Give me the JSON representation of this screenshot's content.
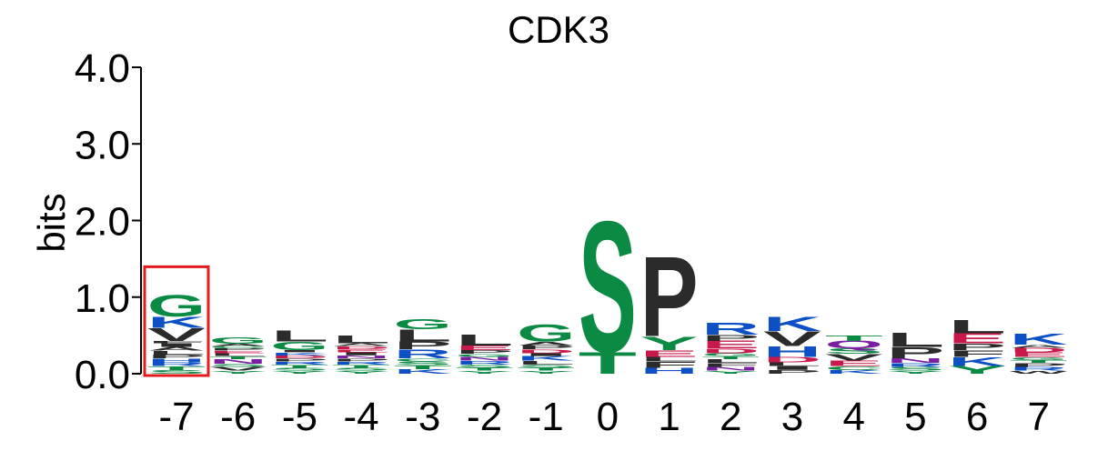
{
  "chart_data": {
    "type": "sequence-logo",
    "title": "CDK3",
    "ylabel": "bits",
    "xlabel": "",
    "ylim": [
      0,
      4
    ],
    "yticks": [
      "0.0",
      "1.0",
      "2.0",
      "3.0",
      "4.0"
    ],
    "positions": [
      "-7",
      "-6",
      "-5",
      "-4",
      "-3",
      "-2",
      "-1",
      "0",
      "1",
      "2",
      "3",
      "4",
      "5",
      "6",
      "7"
    ],
    "highlight_position": "-7",
    "highlight_color": "#e41a1c",
    "residue_colors": {
      "G": "#0b8a44",
      "S": "#0b8a44",
      "T": "#0b8a44",
      "Y": "#0b8a44",
      "C": "#0b8a44",
      "K": "#0d4fc5",
      "R": "#0d4fc5",
      "H": "#0d4fc5",
      "D": "#c8194a",
      "E": "#c8194a",
      "N": "#7a1fa2",
      "Q": "#7a1fa2",
      "P": "#2b2b2b",
      "L": "#2b2b2b",
      "I": "#2b2b2b",
      "V": "#2b2b2b",
      "F": "#2b2b2b",
      "A": "#2b2b2b",
      "M": "#2b2b2b",
      "W": "#2b2b2b"
    },
    "stacks": [
      {
        "position": "-7",
        "letters": [
          {
            "r": "S",
            "h": 0.05
          },
          {
            "r": "T",
            "h": 0.05
          },
          {
            "r": "R",
            "h": 0.05
          },
          {
            "r": "H",
            "h": 0.05
          },
          {
            "r": "P",
            "h": 0.05
          },
          {
            "r": "L",
            "h": 0.05
          },
          {
            "r": "A",
            "h": 0.05
          },
          {
            "r": "I",
            "h": 0.05
          },
          {
            "r": "F",
            "h": 0.03
          },
          {
            "r": "V",
            "h": 0.17
          },
          {
            "r": "K",
            "h": 0.15
          },
          {
            "r": "G",
            "h": 0.29
          }
        ]
      },
      {
        "position": "-6",
        "letters": [
          {
            "r": "Y",
            "h": 0.04
          },
          {
            "r": "V",
            "h": 0.05
          },
          {
            "r": "S",
            "h": 0.04
          },
          {
            "r": "N",
            "h": 0.06
          },
          {
            "r": "T",
            "h": 0.04
          },
          {
            "r": "L",
            "h": 0.04
          },
          {
            "r": "E",
            "h": 0.03
          },
          {
            "r": "P",
            "h": 0.03
          },
          {
            "r": "C",
            "h": 0.03
          },
          {
            "r": "A",
            "h": 0.03
          },
          {
            "r": "G",
            "h": 0.09
          }
        ]
      },
      {
        "position": "-5",
        "letters": [
          {
            "r": "Y",
            "h": 0.04
          },
          {
            "r": "S",
            "h": 0.04
          },
          {
            "r": "T",
            "h": 0.04
          },
          {
            "r": "R",
            "h": 0.04
          },
          {
            "r": "P",
            "h": 0.04
          },
          {
            "r": "D",
            "h": 0.04
          },
          {
            "r": "K",
            "h": 0.04
          },
          {
            "r": "I",
            "h": 0.03
          },
          {
            "r": "G",
            "h": 0.11
          },
          {
            "r": "L",
            "h": 0.15
          }
        ]
      },
      {
        "position": "-4",
        "letters": [
          {
            "r": "Y",
            "h": 0.04
          },
          {
            "r": "S",
            "h": 0.04
          },
          {
            "r": "T",
            "h": 0.04
          },
          {
            "r": "R",
            "h": 0.04
          },
          {
            "r": "P",
            "h": 0.04
          },
          {
            "r": "N",
            "h": 0.04
          },
          {
            "r": "I",
            "h": 0.04
          },
          {
            "r": "E",
            "h": 0.04
          },
          {
            "r": "D",
            "h": 0.04
          },
          {
            "r": "A",
            "h": 0.04
          },
          {
            "r": "L",
            "h": 0.1
          }
        ]
      },
      {
        "position": "-3",
        "letters": [
          {
            "r": "K",
            "h": 0.06
          },
          {
            "r": "T",
            "h": 0.05
          },
          {
            "r": "S",
            "h": 0.05
          },
          {
            "r": "C",
            "h": 0.04
          },
          {
            "r": "R",
            "h": 0.12
          },
          {
            "r": "P",
            "h": 0.1
          },
          {
            "r": "L",
            "h": 0.16
          },
          {
            "r": "G",
            "h": 0.13
          }
        ]
      },
      {
        "position": "-2",
        "letters": [
          {
            "r": "Y",
            "h": 0.04
          },
          {
            "r": "T",
            "h": 0.04
          },
          {
            "r": "S",
            "h": 0.04
          },
          {
            "r": "R",
            "h": 0.05
          },
          {
            "r": "N",
            "h": 0.05
          },
          {
            "r": "G",
            "h": 0.04
          },
          {
            "r": "P",
            "h": 0.05
          },
          {
            "r": "E",
            "h": 0.06
          },
          {
            "r": "L",
            "h": 0.15
          }
        ]
      },
      {
        "position": "-1",
        "letters": [
          {
            "r": "Y",
            "h": 0.04
          },
          {
            "r": "T",
            "h": 0.04
          },
          {
            "r": "S",
            "h": 0.04
          },
          {
            "r": "L",
            "h": 0.05
          },
          {
            "r": "K",
            "h": 0.06
          },
          {
            "r": "I",
            "h": 0.04
          },
          {
            "r": "D",
            "h": 0.05
          },
          {
            "r": "P",
            "h": 0.05
          },
          {
            "r": "A",
            "h": 0.05
          },
          {
            "r": "G",
            "h": 0.23
          }
        ]
      },
      {
        "position": "0",
        "letters": [
          {
            "r": "T",
            "h": 0.29
          },
          {
            "r": "S",
            "h": 1.76
          }
        ]
      },
      {
        "position": "1",
        "letters": [
          {
            "r": "H",
            "h": 0.08
          },
          {
            "r": "F",
            "h": 0.08
          },
          {
            "r": "L",
            "h": 0.06
          },
          {
            "r": "E",
            "h": 0.09
          },
          {
            "r": "Y",
            "h": 0.18
          },
          {
            "r": "P",
            "h": 1.07
          }
        ]
      },
      {
        "position": "2",
        "letters": [
          {
            "r": "Y",
            "h": 0.04
          },
          {
            "r": "N",
            "h": 0.05
          },
          {
            "r": "F",
            "h": 0.05
          },
          {
            "r": "L",
            "h": 0.05
          },
          {
            "r": "T",
            "h": 0.04
          },
          {
            "r": "G",
            "h": 0.04
          },
          {
            "r": "D",
            "h": 0.06
          },
          {
            "r": "E",
            "h": 0.1
          },
          {
            "r": "P",
            "h": 0.08
          },
          {
            "r": "R",
            "h": 0.16
          }
        ]
      },
      {
        "position": "3",
        "letters": [
          {
            "r": "P",
            "h": 0.05
          },
          {
            "r": "I",
            "h": 0.05
          },
          {
            "r": "L",
            "h": 0.05
          },
          {
            "r": "D",
            "h": 0.07
          },
          {
            "r": "H",
            "h": 0.14
          },
          {
            "r": "V",
            "h": 0.2
          },
          {
            "r": "K",
            "h": 0.19
          }
        ]
      },
      {
        "position": "4",
        "letters": [
          {
            "r": "K",
            "h": 0.05
          },
          {
            "r": "C",
            "h": 0.05
          },
          {
            "r": "E",
            "h": 0.07
          },
          {
            "r": "V",
            "h": 0.09
          },
          {
            "r": "S",
            "h": 0.07
          },
          {
            "r": "Q",
            "h": 0.1
          },
          {
            "r": "T",
            "h": 0.07
          }
        ]
      },
      {
        "position": "5",
        "letters": [
          {
            "r": "Y",
            "h": 0.04
          },
          {
            "r": "S",
            "h": 0.05
          },
          {
            "r": "R",
            "h": 0.05
          },
          {
            "r": "N",
            "h": 0.06
          },
          {
            "r": "P",
            "h": 0.15
          },
          {
            "r": "L",
            "h": 0.19
          }
        ]
      },
      {
        "position": "6",
        "letters": [
          {
            "r": "Y",
            "h": 0.1
          },
          {
            "r": "K",
            "h": 0.12
          },
          {
            "r": "F",
            "h": 0.09
          },
          {
            "r": "P",
            "h": 0.09
          },
          {
            "r": "E",
            "h": 0.13
          },
          {
            "r": "L",
            "h": 0.18
          }
        ]
      },
      {
        "position": "7",
        "letters": [
          {
            "r": "W",
            "h": 0.04
          },
          {
            "r": "R",
            "h": 0.05
          },
          {
            "r": "P",
            "h": 0.05
          },
          {
            "r": "T",
            "h": 0.04
          },
          {
            "r": "G",
            "h": 0.04
          },
          {
            "r": "E",
            "h": 0.06
          },
          {
            "r": "D",
            "h": 0.06
          },
          {
            "r": "A",
            "h": 0.04
          },
          {
            "r": "K",
            "h": 0.15
          }
        ]
      }
    ]
  }
}
